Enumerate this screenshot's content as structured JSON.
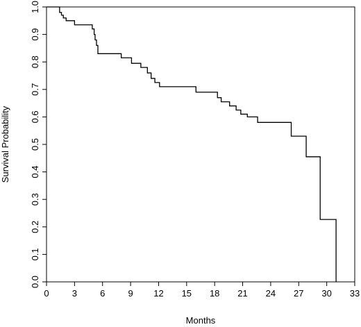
{
  "chart_data": {
    "type": "line",
    "step": true,
    "xlabel": "Months",
    "ylabel": "Survival Probability",
    "xlim": [
      0,
      33
    ],
    "ylim": [
      0,
      1
    ],
    "xticks": [
      0,
      3,
      6,
      9,
      12,
      15,
      18,
      21,
      24,
      27,
      30,
      33
    ],
    "yticks": [
      0.0,
      0.1,
      0.2,
      0.3,
      0.4,
      0.5,
      0.6,
      0.7,
      0.8,
      0.9,
      1.0
    ],
    "ytick_labels": [
      "0.0",
      "0.1",
      "0.2",
      "0.3",
      "0.4",
      "0.5",
      "0.6",
      "0.7",
      "0.8",
      "0.9",
      "1.0"
    ],
    "grid": false,
    "series": [
      {
        "x": [
          0,
          1.4,
          1.6,
          1.8,
          2.1,
          3.0,
          4.9,
          5.1,
          5.2,
          5.35,
          5.5,
          8.0,
          9.1,
          10.1,
          10.8,
          11.2,
          11.6,
          12.1,
          16.0,
          18.3,
          18.7,
          19.6,
          20.3,
          20.8,
          21.5,
          22.6,
          26.2,
          27.8,
          29.3,
          31.0
        ],
        "y": [
          1.0,
          0.98,
          0.97,
          0.96,
          0.95,
          0.935,
          0.92,
          0.9,
          0.88,
          0.86,
          0.83,
          0.815,
          0.795,
          0.78,
          0.76,
          0.74,
          0.725,
          0.71,
          0.69,
          0.67,
          0.655,
          0.64,
          0.625,
          0.61,
          0.6,
          0.58,
          0.53,
          0.455,
          0.227,
          0.0
        ]
      }
    ]
  }
}
